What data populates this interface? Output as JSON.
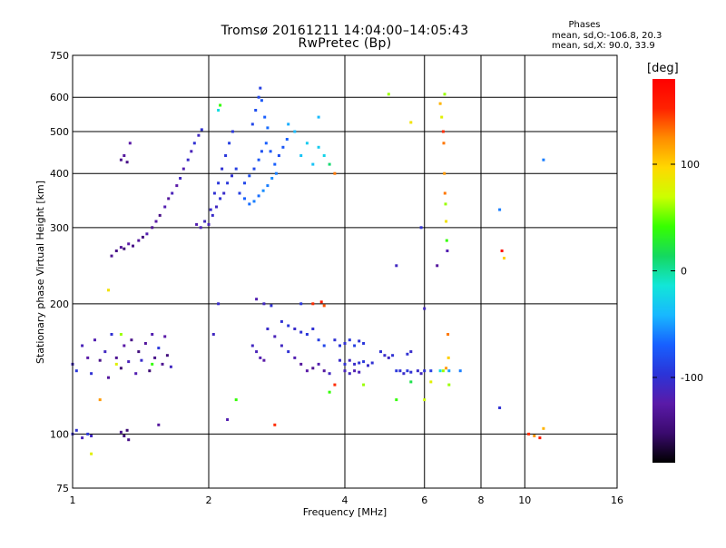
{
  "header": {
    "title_line1": "Tromsø 20161211 14:04:00–14:05:43",
    "title_line2": "RwPretec (Bp)",
    "phases_heading": "Phases",
    "phases_o": "mean, sd,O:-106.8, 20.3",
    "phases_x": "mean, sd,X:  90.0, 33.9"
  },
  "colorbar": {
    "unit_label": "[deg]",
    "ticks": [
      {
        "value": 100,
        "label": "100"
      },
      {
        "value": 0,
        "label": "0"
      },
      {
        "value": -100,
        "label": "-100"
      }
    ],
    "range": [
      -180,
      180
    ],
    "stops": [
      "#000000",
      "#3a0a6e",
      "#5a1aa8",
      "#2b34d8",
      "#1760ff",
      "#18b8ff",
      "#12e6d8",
      "#14d860",
      "#36ff00",
      "#ccff00",
      "#ffd800",
      "#ff8c00",
      "#ff2200",
      "#ff0000"
    ]
  },
  "chart_data": {
    "type": "scatter",
    "title": "Tromsø 20161211 14:04:00–14:05:43",
    "subtitle": "RwPretec (Bp)",
    "xlabel": "Frequency [MHz]",
    "ylabel": "Stationary phase Virtual Height [km]",
    "xscale": "log",
    "yscale": "log",
    "xlim": [
      1,
      16
    ],
    "ylim": [
      75,
      750
    ],
    "xticks": [
      1,
      2,
      4,
      6,
      8,
      10,
      16
    ],
    "xtick_labels": [
      "1",
      "2",
      "4",
      "6",
      "8",
      "10",
      "16"
    ],
    "yticks": [
      75,
      100,
      200,
      300,
      400,
      500,
      600,
      750
    ],
    "ytick_labels": [
      "75",
      "100",
      "200",
      "300",
      "400",
      "500",
      "600",
      "750"
    ],
    "grid": true,
    "color_variable": "phase [deg]",
    "color_range": [
      -180,
      180
    ],
    "series": [
      {
        "points": [
          [
            1.0,
            145,
            -110
          ],
          [
            1.02,
            140,
            -95
          ],
          [
            1.05,
            160,
            -115
          ],
          [
            1.08,
            150,
            -125
          ],
          [
            1.1,
            138,
            -100
          ],
          [
            1.12,
            165,
            -120
          ],
          [
            1.15,
            148,
            -140
          ],
          [
            1.18,
            155,
            -110
          ],
          [
            1.2,
            135,
            -130
          ],
          [
            1.22,
            170,
            -100
          ],
          [
            1.25,
            150,
            -135
          ],
          [
            1.28,
            142,
            -150
          ],
          [
            1.3,
            160,
            -125
          ],
          [
            1.33,
            147,
            -115
          ],
          [
            1.35,
            165,
            -140
          ],
          [
            1.38,
            138,
            -120
          ],
          [
            1.4,
            155,
            -145
          ],
          [
            1.42,
            148,
            -105
          ],
          [
            1.45,
            162,
            -130
          ],
          [
            1.48,
            140,
            -150
          ],
          [
            1.5,
            170,
            -120
          ],
          [
            1.52,
            150,
            -140
          ],
          [
            1.55,
            158,
            -95
          ],
          [
            1.58,
            145,
            -135
          ],
          [
            1.6,
            168,
            -125
          ],
          [
            1.62,
            152,
            -145
          ],
          [
            1.65,
            143,
            -110
          ],
          [
            1.0,
            100,
            -105
          ],
          [
            1.02,
            102,
            -100
          ],
          [
            1.05,
            98,
            -115
          ],
          [
            1.08,
            100,
            -95
          ],
          [
            1.1,
            99,
            -110
          ],
          [
            1.28,
            101,
            -135
          ],
          [
            1.3,
            99,
            -145
          ],
          [
            1.32,
            102,
            -150
          ],
          [
            1.33,
            97,
            -140
          ],
          [
            1.22,
            258,
            -135
          ],
          [
            1.25,
            265,
            -140
          ],
          [
            1.28,
            270,
            -130
          ],
          [
            1.3,
            268,
            -150
          ],
          [
            1.33,
            275,
            -125
          ],
          [
            1.36,
            272,
            -140
          ],
          [
            1.4,
            280,
            -130
          ],
          [
            1.43,
            285,
            -145
          ],
          [
            1.46,
            290,
            -120
          ],
          [
            1.5,
            300,
            -135
          ],
          [
            1.53,
            310,
            -125
          ],
          [
            1.56,
            320,
            -140
          ],
          [
            1.6,
            335,
            -120
          ],
          [
            1.63,
            350,
            -130
          ],
          [
            1.66,
            360,
            -115
          ],
          [
            1.7,
            375,
            -125
          ],
          [
            1.73,
            390,
            -110
          ],
          [
            1.76,
            410,
            -120
          ],
          [
            1.8,
            430,
            -105
          ],
          [
            1.83,
            450,
            -115
          ],
          [
            1.86,
            470,
            -100
          ],
          [
            1.9,
            490,
            -110
          ],
          [
            1.93,
            505,
            -100
          ],
          [
            1.28,
            430,
            -135
          ],
          [
            1.3,
            440,
            -130
          ],
          [
            1.32,
            425,
            -140
          ],
          [
            1.34,
            470,
            -125
          ],
          [
            1.88,
            305,
            -120
          ],
          [
            1.92,
            300,
            -115
          ],
          [
            1.96,
            310,
            -110
          ],
          [
            2.0,
            305,
            -115
          ],
          [
            2.04,
            320,
            -105
          ],
          [
            2.08,
            335,
            -110
          ],
          [
            2.12,
            350,
            -100
          ],
          [
            2.16,
            360,
            -105
          ],
          [
            2.2,
            380,
            -95
          ],
          [
            2.25,
            395,
            -100
          ],
          [
            2.3,
            410,
            -90
          ],
          [
            2.02,
            330,
            -105
          ],
          [
            2.06,
            360,
            -100
          ],
          [
            2.1,
            380,
            -95
          ],
          [
            2.14,
            410,
            -100
          ],
          [
            2.18,
            440,
            -95
          ],
          [
            2.22,
            470,
            -90
          ],
          [
            2.26,
            500,
            -95
          ],
          [
            2.34,
            360,
            -90
          ],
          [
            2.4,
            380,
            -85
          ],
          [
            2.46,
            395,
            -80
          ],
          [
            2.52,
            410,
            -85
          ],
          [
            2.58,
            430,
            -75
          ],
          [
            2.62,
            450,
            -80
          ],
          [
            2.68,
            470,
            -70
          ],
          [
            2.74,
            450,
            -75
          ],
          [
            2.8,
            420,
            -70
          ],
          [
            2.86,
            440,
            -80
          ],
          [
            2.92,
            460,
            -75
          ],
          [
            2.98,
            480,
            -70
          ],
          [
            2.4,
            350,
            -70
          ],
          [
            2.46,
            340,
            -65
          ],
          [
            2.52,
            345,
            -60
          ],
          [
            2.58,
            355,
            -65
          ],
          [
            2.64,
            365,
            -55
          ],
          [
            2.7,
            375,
            -60
          ],
          [
            2.76,
            390,
            -55
          ],
          [
            2.82,
            400,
            -60
          ],
          [
            2.5,
            520,
            -85
          ],
          [
            2.54,
            560,
            -80
          ],
          [
            2.58,
            600,
            -85
          ],
          [
            2.6,
            630,
            -90
          ],
          [
            2.62,
            590,
            -75
          ],
          [
            2.66,
            540,
            -70
          ],
          [
            2.7,
            510,
            -65
          ],
          [
            2.1,
            560,
            -20
          ],
          [
            2.12,
            575,
            40
          ],
          [
            3.0,
            520,
            -45
          ],
          [
            3.1,
            500,
            -40
          ],
          [
            3.2,
            440,
            -35
          ],
          [
            3.3,
            470,
            -30
          ],
          [
            3.4,
            420,
            -35
          ],
          [
            3.5,
            460,
            -30
          ],
          [
            3.6,
            440,
            -25
          ],
          [
            3.7,
            420,
            10
          ],
          [
            3.8,
            400,
            130
          ],
          [
            3.5,
            540,
            -40
          ],
          [
            2.1,
            200,
            -105
          ],
          [
            2.55,
            205,
            -120
          ],
          [
            2.65,
            200,
            -110
          ],
          [
            2.75,
            198,
            -100
          ],
          [
            3.2,
            200,
            -95
          ],
          [
            3.4,
            200,
            150
          ],
          [
            3.55,
            202,
            160
          ],
          [
            3.6,
            198,
            140
          ],
          [
            2.7,
            175,
            -105
          ],
          [
            2.8,
            168,
            -115
          ],
          [
            2.9,
            160,
            -110
          ],
          [
            3.0,
            155,
            -100
          ],
          [
            3.1,
            150,
            -120
          ],
          [
            3.2,
            145,
            -130
          ],
          [
            3.3,
            140,
            -125
          ],
          [
            3.4,
            142,
            -135
          ],
          [
            3.5,
            145,
            -120
          ],
          [
            3.6,
            140,
            -130
          ],
          [
            3.7,
            138,
            -110
          ],
          [
            2.9,
            182,
            -100
          ],
          [
            3.0,
            178,
            -95
          ],
          [
            3.1,
            175,
            -105
          ],
          [
            3.2,
            172,
            -100
          ],
          [
            3.3,
            170,
            -95
          ],
          [
            3.4,
            175,
            -100
          ],
          [
            3.5,
            165,
            -90
          ],
          [
            3.6,
            160,
            -85
          ],
          [
            2.5,
            160,
            -110
          ],
          [
            2.55,
            155,
            -115
          ],
          [
            2.6,
            150,
            -120
          ],
          [
            2.65,
            148,
            -125
          ],
          [
            3.8,
            165,
            -100
          ],
          [
            3.9,
            160,
            -95
          ],
          [
            4.0,
            162,
            -100
          ],
          [
            4.1,
            165,
            -95
          ],
          [
            4.2,
            160,
            -90
          ],
          [
            4.3,
            164,
            -100
          ],
          [
            4.4,
            162,
            -95
          ],
          [
            3.9,
            148,
            -105
          ],
          [
            4.0,
            145,
            -100
          ],
          [
            4.1,
            148,
            -110
          ],
          [
            4.2,
            145,
            -105
          ],
          [
            4.3,
            146,
            -100
          ],
          [
            4.4,
            147,
            -95
          ],
          [
            4.5,
            144,
            -105
          ],
          [
            4.6,
            146,
            -100
          ],
          [
            4.0,
            140,
            -115
          ],
          [
            4.1,
            138,
            -110
          ],
          [
            4.2,
            140,
            -120
          ],
          [
            4.3,
            139,
            -115
          ],
          [
            4.8,
            155,
            -100
          ],
          [
            4.9,
            152,
            -105
          ],
          [
            5.0,
            150,
            -110
          ],
          [
            5.1,
            152,
            -100
          ],
          [
            5.2,
            140,
            -95
          ],
          [
            5.3,
            140,
            -100
          ],
          [
            5.4,
            138,
            -105
          ],
          [
            5.5,
            140,
            -95
          ],
          [
            5.6,
            139,
            -100
          ],
          [
            5.8,
            140,
            -105
          ],
          [
            5.9,
            138,
            -110
          ],
          [
            6.0,
            140,
            -100
          ],
          [
            6.2,
            140,
            -90
          ],
          [
            6.5,
            140,
            -20
          ],
          [
            6.6,
            140,
            60
          ],
          [
            6.7,
            142,
            120
          ],
          [
            6.8,
            140,
            -50
          ],
          [
            7.2,
            140,
            -60
          ],
          [
            5.5,
            153,
            -100
          ],
          [
            5.6,
            155,
            -105
          ],
          [
            3.8,
            130,
            150
          ],
          [
            3.7,
            125,
            40
          ],
          [
            4.4,
            130,
            60
          ],
          [
            5.2,
            120,
            40
          ],
          [
            5.6,
            132,
            20
          ],
          [
            6.2,
            132,
            80
          ],
          [
            6.0,
            120,
            70
          ],
          [
            5.0,
            610,
            60
          ],
          [
            5.2,
            245,
            -110
          ],
          [
            5.6,
            525,
            90
          ],
          [
            5.9,
            300,
            -100
          ],
          [
            6.0,
            195,
            -110
          ],
          [
            6.4,
            245,
            -130
          ],
          [
            6.5,
            580,
            110
          ],
          [
            6.55,
            540,
            80
          ],
          [
            6.6,
            500,
            150
          ],
          [
            6.62,
            470,
            130
          ],
          [
            6.64,
            400,
            120
          ],
          [
            6.66,
            360,
            130
          ],
          [
            6.68,
            340,
            60
          ],
          [
            6.7,
            310,
            90
          ],
          [
            6.72,
            280,
            40
          ],
          [
            6.74,
            265,
            -120
          ],
          [
            6.76,
            170,
            130
          ],
          [
            6.78,
            150,
            100
          ],
          [
            6.8,
            130,
            60
          ],
          [
            6.65,
            610,
            60
          ],
          [
            8.8,
            330,
            -60
          ],
          [
            8.9,
            265,
            170
          ],
          [
            9.0,
            255,
            100
          ],
          [
            8.8,
            115,
            -100
          ],
          [
            10.2,
            100,
            150
          ],
          [
            10.5,
            99,
            120
          ],
          [
            10.8,
            98,
            160
          ],
          [
            11.0,
            103,
            110
          ],
          [
            11.0,
            430,
            -60
          ],
          [
            2.05,
            170,
            -110
          ],
          [
            2.2,
            108,
            -120
          ],
          [
            2.3,
            120,
            40
          ],
          [
            2.8,
            105,
            150
          ],
          [
            1.1,
            90,
            80
          ],
          [
            1.2,
            215,
            90
          ],
          [
            1.28,
            170,
            60
          ],
          [
            1.25,
            145,
            80
          ],
          [
            1.15,
            120,
            120
          ],
          [
            1.5,
            145,
            40
          ],
          [
            1.55,
            105,
            -130
          ]
        ]
      }
    ]
  }
}
